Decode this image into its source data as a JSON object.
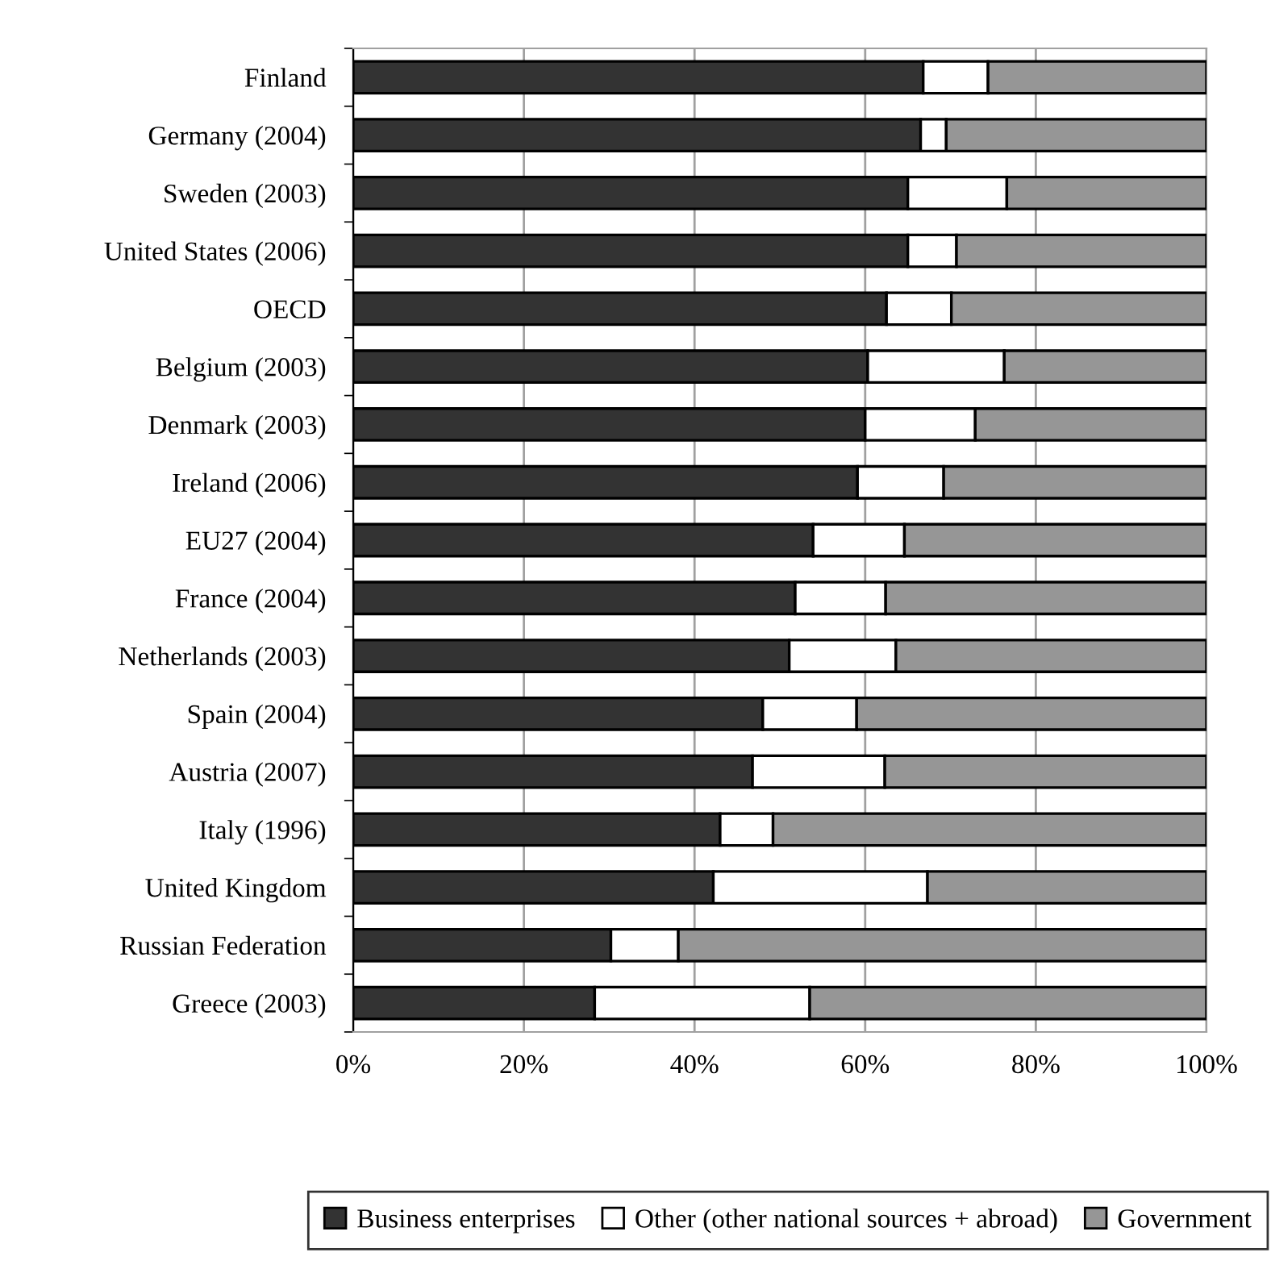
{
  "chart_data": {
    "type": "bar",
    "orientation": "horizontal",
    "stacked": true,
    "categories": [
      "Finland",
      "Germany (2004)",
      "Sweden (2003)",
      "United States (2006)",
      "OECD",
      "Belgium (2003)",
      "Denmark (2003)",
      "Ireland (2006)",
      "EU27 (2004)",
      "France (2004)",
      "Netherlands (2003)",
      "Spain (2004)",
      "Austria (2007)",
      "Italy (1996)",
      "United Kingdom",
      "Russian Federation",
      "Greece (2003)"
    ],
    "series": [
      {
        "name": "Business enterprises",
        "color": "#333333",
        "values": [
          66.8,
          66.5,
          65.0,
          65.0,
          62.5,
          60.3,
          60.0,
          59.1,
          53.9,
          51.8,
          51.1,
          48.0,
          46.8,
          43.0,
          42.2,
          30.2,
          28.3
        ]
      },
      {
        "name": "Other (other national sources + abroad)",
        "color": "#ffffff",
        "values": [
          7.6,
          3.0,
          11.6,
          5.7,
          7.6,
          16.0,
          12.9,
          10.1,
          10.7,
          10.6,
          12.5,
          11.0,
          15.5,
          6.2,
          25.1,
          7.9,
          25.2
        ]
      },
      {
        "name": "Government",
        "color": "#969696",
        "values": [
          25.6,
          30.5,
          23.4,
          29.3,
          29.9,
          23.7,
          27.1,
          30.8,
          35.4,
          37.6,
          36.4,
          41.0,
          37.7,
          50.8,
          32.7,
          61.9,
          46.5
        ]
      }
    ],
    "xlim": [
      0,
      100
    ],
    "xticks": [
      {
        "value": 0,
        "label": "0%"
      },
      {
        "value": 20,
        "label": "20%"
      },
      {
        "value": 40,
        "label": "40%"
      },
      {
        "value": 60,
        "label": "60%"
      },
      {
        "value": 80,
        "label": "80%"
      },
      {
        "value": 100,
        "label": "100%"
      }
    ],
    "grid": "x",
    "legend": "bottom"
  }
}
